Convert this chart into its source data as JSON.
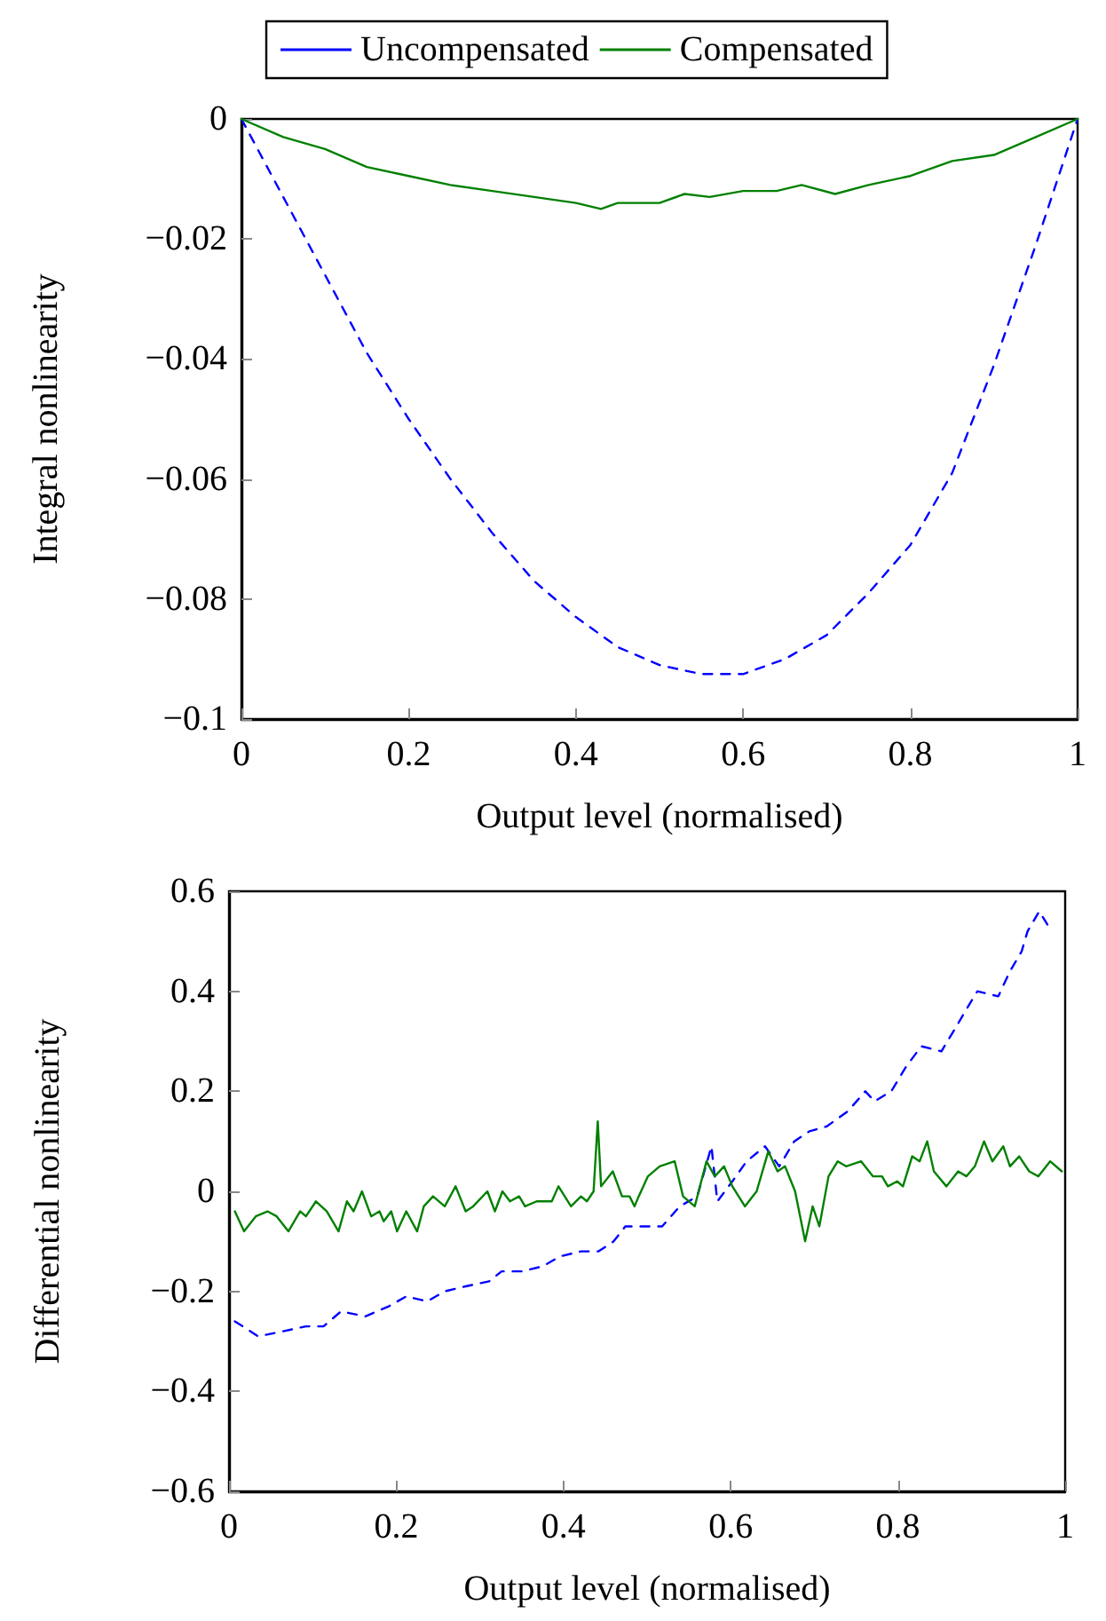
{
  "chart_data": [
    {
      "type": "line",
      "xlabel": "Output level (normalised)",
      "ylabel": "Integral nonlinearity",
      "xlim": [
        0,
        1
      ],
      "ylim": [
        -0.1,
        0
      ],
      "xticks": [
        0,
        0.2,
        0.4,
        0.6,
        0.8,
        1
      ],
      "yticks": [
        {
          "value": -0.1,
          "label": "−0.1"
        },
        {
          "value": -0.08,
          "label": "−0.08"
        },
        {
          "value": -0.06,
          "label": "−0.06"
        },
        {
          "value": -0.04,
          "label": "−0.04"
        },
        {
          "value": -0.02,
          "label": "−0.02"
        },
        0
      ],
      "grid": false,
      "legend": "top",
      "marker": "none",
      "series": [
        {
          "name": "Uncompensated",
          "color": "#0000ff",
          "line_style": "dashed",
          "x": [
            0,
            0.05,
            0.1,
            0.15,
            0.2,
            0.25,
            0.3,
            0.35,
            0.4,
            0.45,
            0.5,
            0.55,
            0.6,
            0.65,
            0.7,
            0.75,
            0.8,
            0.85,
            0.9,
            0.95,
            1
          ],
          "values": [
            0,
            -0.013,
            -0.026,
            -0.039,
            -0.05,
            -0.06,
            -0.069,
            -0.077,
            -0.083,
            -0.088,
            -0.091,
            -0.0925,
            -0.0925,
            -0.09,
            -0.086,
            -0.079,
            -0.071,
            -0.059,
            -0.041,
            -0.021,
            0
          ]
        },
        {
          "name": "Compensated",
          "color": "#008000",
          "line_style": "solid",
          "x": [
            0,
            0.05,
            0.1,
            0.15,
            0.2,
            0.25,
            0.3,
            0.35,
            0.4,
            0.43,
            0.45,
            0.5,
            0.53,
            0.56,
            0.6,
            0.64,
            0.67,
            0.71,
            0.75,
            0.8,
            0.85,
            0.9,
            0.95,
            1
          ],
          "values": [
            0,
            -0.003,
            -0.005,
            -0.008,
            -0.0095,
            -0.011,
            -0.012,
            -0.013,
            -0.014,
            -0.015,
            -0.014,
            -0.014,
            -0.0125,
            -0.013,
            -0.012,
            -0.012,
            -0.011,
            -0.0125,
            -0.011,
            -0.0095,
            -0.007,
            -0.006,
            -0.003,
            0
          ]
        }
      ]
    },
    {
      "type": "line",
      "xlabel": "Output level (normalised)",
      "ylabel": "Differential nonlinearity",
      "xlim": [
        0,
        1
      ],
      "ylim": [
        -0.6,
        0.6
      ],
      "xticks": [
        0,
        0.2,
        0.4,
        0.6,
        0.8,
        1
      ],
      "yticks": [
        {
          "value": -0.6,
          "label": "−0.6"
        },
        {
          "value": -0.4,
          "label": "−0.4"
        },
        {
          "value": -0.2,
          "label": "−0.2"
        },
        0,
        0.2,
        0.4,
        0.6
      ],
      "grid": false,
      "legend": false,
      "marker": "none",
      "series": [
        {
          "color": "#0000ff",
          "line_style": "dashed",
          "x": [
            0.007,
            0.035,
            0.064,
            0.092,
            0.113,
            0.134,
            0.163,
            0.191,
            0.212,
            0.237,
            0.258,
            0.283,
            0.311,
            0.326,
            0.35,
            0.375,
            0.396,
            0.421,
            0.442,
            0.46,
            0.474,
            0.499,
            0.518,
            0.539,
            0.56,
            0.577,
            0.584,
            0.602,
            0.619,
            0.641,
            0.658,
            0.676,
            0.694,
            0.715,
            0.74,
            0.761,
            0.772,
            0.792,
            0.81,
            0.828,
            0.852,
            0.87,
            0.884,
            0.895,
            0.92,
            0.934,
            0.948,
            0.955,
            0.969,
            0.98
          ],
          "values": [
            -0.26,
            -0.29,
            -0.28,
            -0.27,
            -0.27,
            -0.24,
            -0.25,
            -0.23,
            -0.21,
            -0.22,
            -0.2,
            -0.19,
            -0.18,
            -0.16,
            -0.16,
            -0.15,
            -0.13,
            -0.12,
            -0.12,
            -0.1,
            -0.07,
            -0.07,
            -0.07,
            -0.03,
            -0.01,
            0.09,
            -0.02,
            0.02,
            0.06,
            0.09,
            0.05,
            0.1,
            0.12,
            0.13,
            0.16,
            0.2,
            0.18,
            0.2,
            0.25,
            0.29,
            0.28,
            0.33,
            0.37,
            0.4,
            0.39,
            0.44,
            0.48,
            0.52,
            0.56,
            0.53
          ]
        },
        {
          "color": "#008000",
          "line_style": "solid",
          "x": [
            0.007,
            0.018,
            0.032,
            0.046,
            0.057,
            0.071,
            0.085,
            0.092,
            0.104,
            0.117,
            0.131,
            0.141,
            0.149,
            0.159,
            0.17,
            0.18,
            0.185,
            0.194,
            0.201,
            0.212,
            0.225,
            0.233,
            0.244,
            0.258,
            0.271,
            0.283,
            0.292,
            0.309,
            0.318,
            0.327,
            0.336,
            0.347,
            0.354,
            0.368,
            0.386,
            0.394,
            0.409,
            0.421,
            0.428,
            0.436,
            0.441,
            0.445,
            0.459,
            0.47,
            0.479,
            0.485,
            0.49,
            0.501,
            0.515,
            0.533,
            0.543,
            0.557,
            0.571,
            0.581,
            0.592,
            0.602,
            0.617,
            0.631,
            0.645,
            0.656,
            0.665,
            0.677,
            0.689,
            0.698,
            0.706,
            0.717,
            0.728,
            0.738,
            0.756,
            0.77,
            0.781,
            0.788,
            0.799,
            0.806,
            0.817,
            0.826,
            0.835,
            0.843,
            0.858,
            0.872,
            0.882,
            0.892,
            0.903,
            0.913,
            0.926,
            0.934,
            0.945,
            0.957,
            0.968,
            0.982,
            0.996
          ],
          "values": [
            -0.04,
            -0.08,
            -0.05,
            -0.04,
            -0.05,
            -0.08,
            -0.04,
            -0.05,
            -0.02,
            -0.04,
            -0.08,
            -0.02,
            -0.04,
            0,
            -0.05,
            -0.04,
            -0.06,
            -0.04,
            -0.08,
            -0.04,
            -0.08,
            -0.03,
            -0.01,
            -0.03,
            0.01,
            -0.04,
            -0.03,
            0,
            -0.04,
            0,
            -0.02,
            -0.01,
            -0.03,
            -0.02,
            -0.02,
            0.01,
            -0.03,
            -0.01,
            -0.02,
            0,
            0.14,
            0.01,
            0.04,
            -0.01,
            -0.01,
            -0.03,
            -0.01,
            0.03,
            0.05,
            0.06,
            -0.01,
            -0.03,
            0.06,
            0.03,
            0.05,
            0.01,
            -0.03,
            0,
            0.08,
            0.04,
            0.05,
            0,
            -0.1,
            -0.03,
            -0.07,
            0.03,
            0.06,
            0.05,
            0.06,
            0.03,
            0.03,
            0.01,
            0.02,
            0.01,
            0.07,
            0.06,
            0.1,
            0.04,
            0.01,
            0.04,
            0.03,
            0.05,
            0.1,
            0.06,
            0.09,
            0.05,
            0.07,
            0.04,
            0.03,
            0.06,
            0.04
          ]
        }
      ]
    }
  ]
}
